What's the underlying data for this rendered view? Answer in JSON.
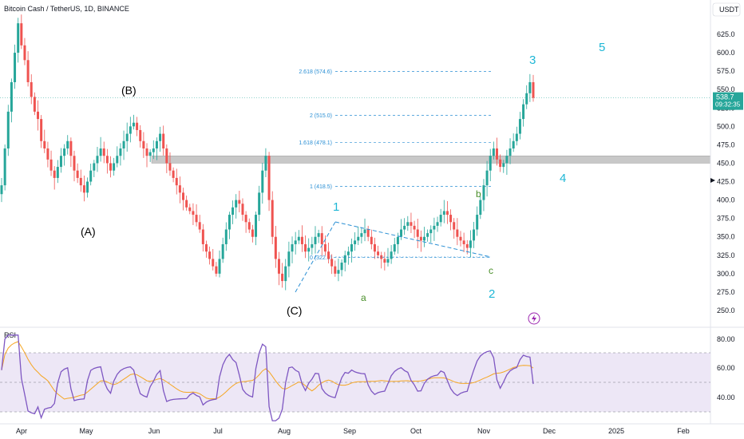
{
  "header": {
    "title": "Bitcoin Cash / TetherUS, 1D, BINANCE"
  },
  "price_axis": {
    "currency_label": "USDT",
    "ticks": [
      "625.0",
      "600.0",
      "575.0",
      "550.0",
      "525.0",
      "500.0",
      "475.0",
      "450.0",
      "425.0",
      "400.0",
      "375.0",
      "350.0",
      "325.0",
      "300.0",
      "275.0",
      "250.0"
    ],
    "current_price": "538.7",
    "countdown": "09:32:35"
  },
  "time_axis": {
    "ticks": [
      "Apr",
      "May",
      "Jun",
      "Jul",
      "Aug",
      "Sep",
      "Oct",
      "Nov",
      "Dec",
      "2025",
      "Feb"
    ]
  },
  "fib_levels": [
    {
      "label": "2.618 (574.6)",
      "price": 574.6
    },
    {
      "label": "2 (515.0)",
      "price": 515.0
    },
    {
      "label": "1.618 (478.1)",
      "price": 478.1
    },
    {
      "label": "1 (418.5)",
      "price": 418.5
    },
    {
      "label": "0 (322.0)",
      "price": 322.0
    }
  ],
  "wave_labels": {
    "w1": "1",
    "w2": "2",
    "w3": "3",
    "w4": "4",
    "w5": "5",
    "A": "(A)",
    "B": "(B)",
    "C": "(C)",
    "a": "a",
    "b": "b",
    "c": "c"
  },
  "rsi": {
    "label": "RSI",
    "ticks": [
      "80.00",
      "60.00",
      "40.00"
    ],
    "upper": 70,
    "middle": 50,
    "lower": 30
  },
  "colors": {
    "up": "#26a69a",
    "down": "#ef5350",
    "fib": "#2a8fd4",
    "rsi": "#7e57c2",
    "rsi_ma": "#f5a623",
    "band": "#ede7f6",
    "zone": "#c8c8c8"
  },
  "icons": {
    "alert": "lightning-icon"
  },
  "chart_data": {
    "type": "candlestick",
    "symbol": "BCHUSDT",
    "interval": "1D",
    "ylim": [
      235,
      650
    ],
    "closes": [
      420,
      470,
      520,
      560,
      600,
      640,
      610,
      590,
      560,
      540,
      520,
      510,
      480,
      470,
      455,
      440,
      430,
      445,
      460,
      470,
      480,
      460,
      440,
      430,
      420,
      410,
      425,
      440,
      450,
      460,
      470,
      460,
      450,
      440,
      450,
      460,
      470,
      480,
      490,
      500,
      505,
      495,
      480,
      470,
      460,
      465,
      470,
      480,
      490,
      470,
      450,
      440,
      430,
      420,
      410,
      400,
      390,
      385,
      380,
      370,
      360,
      340,
      330,
      320,
      310,
      300,
      320,
      340,
      360,
      380,
      390,
      400,
      395,
      380,
      370,
      360,
      350,
      380,
      410,
      440,
      460,
      400,
      350,
      320,
      300,
      290,
      310,
      330,
      340,
      345,
      350,
      340,
      330,
      335,
      340,
      350,
      355,
      340,
      330,
      320,
      310,
      300,
      305,
      315,
      325,
      330,
      340,
      345,
      350,
      355,
      360,
      350,
      340,
      330,
      325,
      320,
      315,
      320,
      330,
      340,
      350,
      360,
      365,
      370,
      365,
      360,
      350,
      345,
      350,
      355,
      360,
      365,
      370,
      380,
      385,
      380,
      370,
      360,
      350,
      345,
      340,
      335,
      345,
      360,
      380,
      400,
      420,
      440,
      460,
      470,
      455,
      445,
      450,
      460,
      470,
      480,
      490,
      510,
      530,
      545,
      560,
      538.7
    ]
  }
}
